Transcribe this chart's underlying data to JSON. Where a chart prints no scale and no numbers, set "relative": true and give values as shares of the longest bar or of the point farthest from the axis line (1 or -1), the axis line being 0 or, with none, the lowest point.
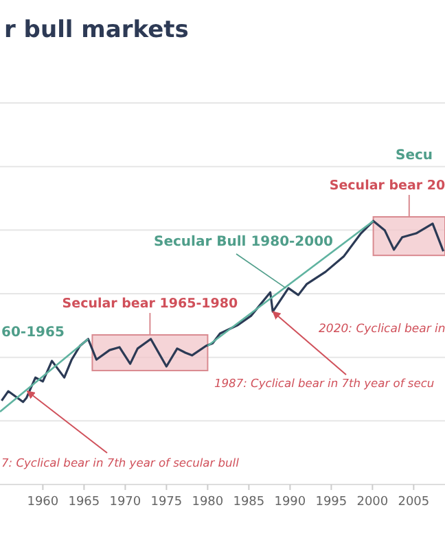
{
  "chart_data": {
    "type": "line",
    "title": "r bull markets",
    "relative": true,
    "grid": "y",
    "marker": "none",
    "xlim": [
      1954.8,
      2008.8
    ],
    "xticks": [
      1960,
      1965,
      1970,
      1975,
      1980,
      1985,
      1990,
      1995,
      2000,
      2005
    ],
    "series": [
      {
        "color": "#2b3a55",
        "x": [
          1955.0,
          1955.8,
          1957.6,
          1958.0,
          1959.1,
          1960.0,
          1961.1,
          1962.6,
          1963.5,
          1964.5,
          1965.5,
          1966.5,
          1968.1,
          1969.3,
          1970.6,
          1971.5,
          1973.1,
          1975.0,
          1976.3,
          1977.3,
          1978.1,
          1979.8,
          1980.6,
          1981.5,
          1983.6,
          1985.3,
          1987.6,
          1987.9,
          1989.8,
          1991.0,
          1992.0,
          1994.3,
          1996.5,
          1998.6,
          2000.1,
          2001.5,
          2002.6,
          2003.6,
          2005.3,
          2007.3,
          2008.6
        ],
        "values": [
          0.318,
          0.354,
          0.313,
          0.328,
          0.406,
          0.391,
          0.469,
          0.406,
          0.474,
          0.526,
          0.552,
          0.474,
          0.51,
          0.521,
          0.458,
          0.516,
          0.552,
          0.448,
          0.516,
          0.5,
          0.49,
          0.526,
          0.536,
          0.573,
          0.604,
          0.641,
          0.729,
          0.656,
          0.745,
          0.719,
          0.76,
          0.807,
          0.865,
          0.953,
          1.0,
          0.964,
          0.891,
          0.938,
          0.953,
          0.99,
          0.885
        ]
      },
      {
        "type": "line",
        "color": "#5fb3a0",
        "x": [
          1954.8,
          1965.5
        ],
        "values": [
          0.276,
          0.552
        ]
      },
      {
        "type": "line",
        "color": "#5fb3a0",
        "x": [
          1980.0,
          2000.1
        ],
        "values": [
          0.526,
          1.0
        ]
      }
    ],
    "bands": [
      {
        "axis": "x",
        "from": 1966.0,
        "to": 1980.0,
        "label": "Secular bear 1965-1980",
        "color": "#f2c6ca"
      },
      {
        "axis": "x",
        "from": 2000.1,
        "to": 2008.8,
        "label": "Secular bear 20",
        "color": "#f2c6ca"
      }
    ],
    "annotations": [
      "Secu",
      {
        "text": "Secular Bull 1980-2000",
        "x": 1989.5,
        "y": 0.745
      },
      "60-1965",
      "2020: Cyclical bear in",
      {
        "text": "1987: Cyclical bear in 7th year of secu",
        "x": 1987.9,
        "y": 0.656
      },
      {
        "text": "7: Cyclical bear in 7th year of secular bull",
        "x": 1958.1,
        "y": 0.354
      }
    ]
  }
}
